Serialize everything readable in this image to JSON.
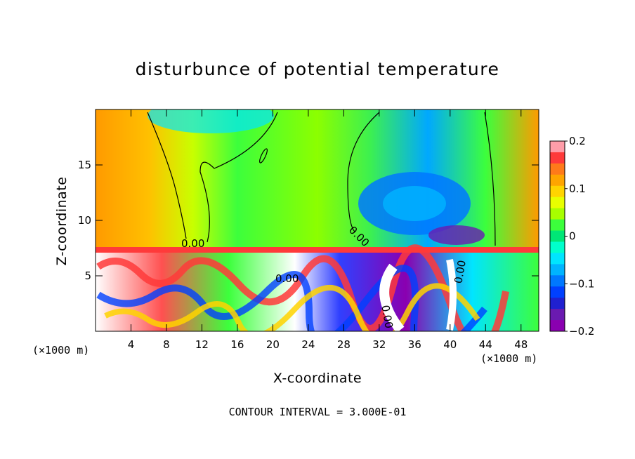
{
  "chart_data": {
    "type": "heatmap",
    "title": "disturbunce of potential temperature",
    "xlabel": "X-coordinate",
    "ylabel": "Z-coordinate",
    "x_unit_label_left": "(×1000 m)",
    "x_unit_label_right": "(×1000 m)",
    "annotation": "CONTOUR INTERVAL = 3.000E-01",
    "xlim": [
      0,
      50
    ],
    "ylim": [
      0,
      20
    ],
    "x_ticks": [
      4,
      8,
      12,
      16,
      20,
      24,
      28,
      32,
      36,
      40,
      44,
      48
    ],
    "x_tick_labels": [
      "4",
      "8",
      "12",
      "16",
      "20",
      "24",
      "28",
      "32",
      "36",
      "40",
      "44",
      "48"
    ],
    "y_ticks": [
      5,
      10,
      15
    ],
    "y_tick_labels": [
      "5",
      "10",
      "15"
    ],
    "colorbar": {
      "range": [
        -0.2,
        0.2
      ],
      "ticks": [
        0.2,
        0.1,
        0,
        -0.1,
        -0.2
      ],
      "tick_labels": [
        "0.2",
        "0.1",
        "0",
        "−0.1",
        "−0.2"
      ],
      "colors": [
        "#ff9da9",
        "#ff3a3a",
        "#ff7a1a",
        "#ffa500",
        "#ffd400",
        "#e8ff00",
        "#a8ff00",
        "#3cff3c",
        "#00e676",
        "#00ffcc",
        "#00e5ff",
        "#00b4ff",
        "#0078ff",
        "#0040ff",
        "#2020d0",
        "#6a1ab0",
        "#8a00b0"
      ]
    },
    "contour_labels": [
      "0.00",
      "0.00",
      "0.00",
      "0.00",
      "0.00"
    ]
  }
}
